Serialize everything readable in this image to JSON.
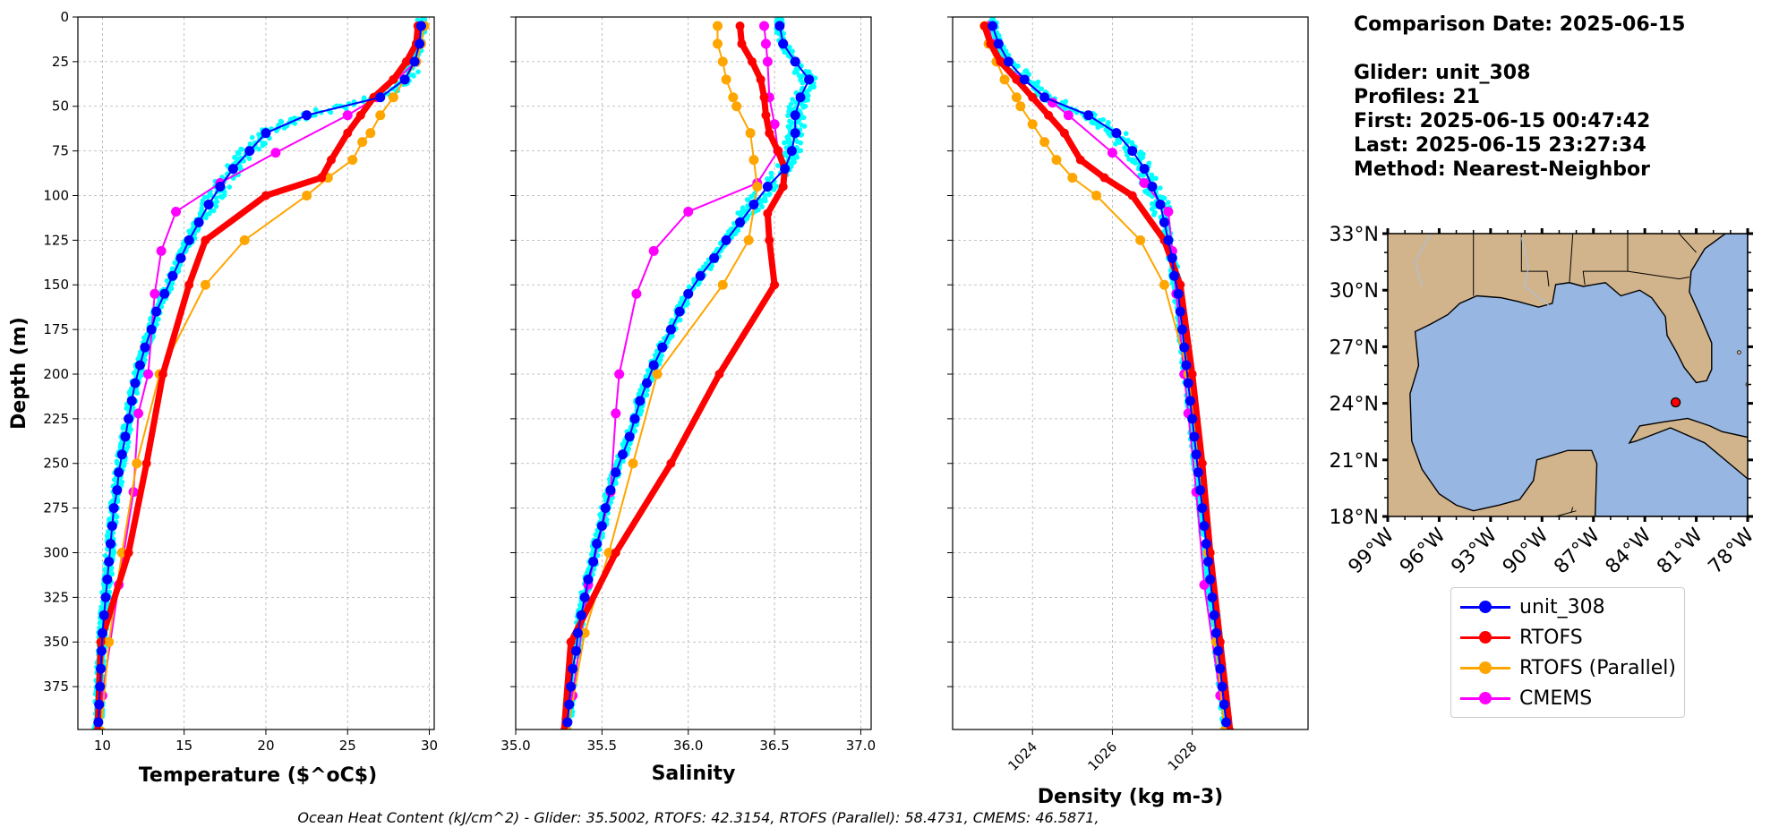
{
  "info": {
    "comparison_date": "Comparison Date: 2025-06-15",
    "glider": "Glider: unit_308",
    "profiles": "Profiles: 21",
    "first": "First: 2025-06-15 00:47:42",
    "last": "Last: 2025-06-15 23:27:34",
    "method": "Method: Nearest-Neighbor"
  },
  "footer": "Ocean Heat Content (kJ/cm^2) - Glider: 35.5002,  RTOFS: 42.3154,  RTOFS (Parallel): 58.4731,  CMEMS: 46.5871,",
  "colors": {
    "glider": "#0000ff",
    "glider_points": "#00ffff",
    "rtofs": "#ff0000",
    "rtofs_parallel": "#ffa500",
    "cmems": "#ff00ff",
    "land": "#d2b48c",
    "ocean": "#97b6e1",
    "grid": "#b0b0b0"
  },
  "legend": [
    {
      "label": "unit_308",
      "color": "#0000ff"
    },
    {
      "label": "RTOFS",
      "color": "#ff0000"
    },
    {
      "label": "RTOFS (Parallel)",
      "color": "#ffa500"
    },
    {
      "label": "CMEMS",
      "color": "#ff00ff"
    }
  ],
  "map": {
    "lat_ticks": [
      "33°N",
      "30°N",
      "27°N",
      "24°N",
      "21°N",
      "18°N"
    ],
    "lon_ticks": [
      "99°W",
      "96°W",
      "93°W",
      "90°W",
      "87°W",
      "84°W",
      "81°W",
      "78°W"
    ],
    "extent": {
      "lon": [
        -99,
        -78
      ],
      "lat": [
        18,
        33
      ]
    },
    "glider_location": {
      "lon": -82.2,
      "lat": 24.05
    }
  },
  "chart_data": [
    {
      "type": "line",
      "xlabel": "Temperature ($^oC$)",
      "ylabel": "Depth (m)",
      "xlim": [
        8.5,
        30.3
      ],
      "ylim": [
        399,
        0
      ],
      "xticks": [
        10,
        15,
        20,
        25,
        30
      ],
      "yticks": [
        0,
        25,
        50,
        75,
        100,
        125,
        150,
        175,
        200,
        225,
        250,
        275,
        300,
        325,
        350,
        375
      ],
      "grid": true,
      "series": [
        {
          "name": "unit_308",
          "marker": "o",
          "width": 2,
          "depth": [
            5,
            15,
            25,
            35,
            45,
            55,
            65,
            75,
            85,
            95,
            105,
            115,
            125,
            135,
            145,
            155,
            165,
            175,
            185,
            195,
            205,
            215,
            225,
            235,
            245,
            255,
            265,
            275,
            285,
            295,
            305,
            315,
            325,
            335,
            345,
            355,
            365,
            375,
            385,
            395
          ],
          "values": [
            29.5,
            29.4,
            29.1,
            28.5,
            27.0,
            22.5,
            20.0,
            19.0,
            18.0,
            17.2,
            16.5,
            15.9,
            15.3,
            14.8,
            14.3,
            13.8,
            13.3,
            13.0,
            12.6,
            12.3,
            12.0,
            11.8,
            11.6,
            11.4,
            11.2,
            11.0,
            10.9,
            10.7,
            10.6,
            10.5,
            10.4,
            10.3,
            10.2,
            10.1,
            10.0,
            9.95,
            9.9,
            9.85,
            9.8,
            9.75
          ]
        },
        {
          "name": "RTOFS",
          "marker": "o",
          "width": 7,
          "depth": [
            5,
            15,
            25,
            35,
            45,
            55,
            65,
            80,
            90,
            100,
            125,
            150,
            200,
            250,
            300,
            350,
            400
          ],
          "values": [
            29.3,
            29.2,
            28.6,
            27.8,
            26.6,
            25.8,
            25.0,
            24.0,
            23.4,
            20.0,
            16.3,
            15.3,
            13.7,
            12.7,
            11.6,
            9.9,
            9.7
          ]
        },
        {
          "name": "RTOFS (Parallel)",
          "marker": "o",
          "width": 2,
          "depth": [
            5,
            15,
            25,
            35,
            45,
            55,
            65,
            70,
            80,
            90,
            100,
            125,
            150,
            200,
            250,
            300,
            350,
            400
          ],
          "values": [
            29.7,
            29.5,
            29.2,
            28.5,
            27.8,
            27.0,
            26.4,
            25.9,
            25.3,
            23.8,
            22.5,
            18.7,
            16.3,
            13.5,
            12.1,
            11.2,
            10.4,
            9.9
          ]
        },
        {
          "name": "CMEMS",
          "marker": "o",
          "width": 2,
          "depth": [
            5,
            15,
            25,
            45,
            55,
            76,
            93,
            109,
            131,
            155,
            200,
            222,
            266,
            318,
            380
          ],
          "values": [
            29.5,
            29.4,
            29.2,
            26.8,
            25.0,
            20.6,
            17.2,
            14.5,
            13.6,
            13.2,
            12.8,
            12.2,
            11.9,
            11.0,
            10.0
          ]
        }
      ]
    },
    {
      "type": "line",
      "xlabel": "Salinity",
      "xlim": [
        35.0,
        37.06
      ],
      "ylim": [
        399,
        0
      ],
      "xticks": [
        35.0,
        35.5,
        36.0,
        36.5,
        37.0
      ],
      "tick_labels": [
        "35.0",
        "35.5",
        "36.0",
        "36.5",
        "37.0"
      ],
      "grid": true,
      "series": [
        {
          "name": "unit_308",
          "marker": "o",
          "width": 2,
          "depth": [
            5,
            15,
            25,
            35,
            45,
            55,
            65,
            75,
            85,
            95,
            105,
            115,
            125,
            135,
            145,
            155,
            165,
            175,
            185,
            195,
            205,
            215,
            225,
            235,
            245,
            255,
            265,
            275,
            285,
            295,
            305,
            315,
            325,
            335,
            345,
            355,
            365,
            375,
            385,
            395
          ],
          "values": [
            36.53,
            36.55,
            36.62,
            36.7,
            36.65,
            36.62,
            36.62,
            36.6,
            36.56,
            36.46,
            36.38,
            36.3,
            36.22,
            36.15,
            36.07,
            36.0,
            35.95,
            35.9,
            35.85,
            35.8,
            35.76,
            35.72,
            35.69,
            35.66,
            35.62,
            35.58,
            35.55,
            35.52,
            35.5,
            35.47,
            35.45,
            35.42,
            35.4,
            35.38,
            35.36,
            35.35,
            35.33,
            35.32,
            35.31,
            35.3
          ]
        },
        {
          "name": "RTOFS",
          "marker": "o",
          "width": 7,
          "depth": [
            5,
            15,
            25,
            35,
            45,
            55,
            65,
            75,
            85,
            95,
            110,
            125,
            150,
            200,
            250,
            300,
            350,
            400
          ],
          "values": [
            36.3,
            36.31,
            36.37,
            36.42,
            36.44,
            36.45,
            36.47,
            36.52,
            36.56,
            36.55,
            36.46,
            36.47,
            36.5,
            36.18,
            35.9,
            35.58,
            35.32,
            35.28
          ]
        },
        {
          "name": "RTOFS (Parallel)",
          "marker": "o",
          "width": 2,
          "depth": [
            5,
            15,
            25,
            35,
            45,
            50,
            65,
            80,
            95,
            125,
            150,
            200,
            250,
            300,
            345,
            400
          ],
          "values": [
            36.17,
            36.17,
            36.2,
            36.22,
            36.26,
            36.28,
            36.36,
            36.38,
            36.4,
            36.35,
            36.2,
            35.82,
            35.68,
            35.54,
            35.4,
            35.3
          ]
        },
        {
          "name": "CMEMS",
          "marker": "o",
          "width": 2,
          "depth": [
            5,
            15,
            25,
            45,
            60,
            75,
            93,
            109,
            131,
            155,
            200,
            222,
            266,
            318,
            380
          ],
          "values": [
            36.44,
            36.45,
            36.46,
            36.47,
            36.5,
            36.52,
            36.4,
            36.0,
            35.8,
            35.7,
            35.6,
            35.58,
            35.55,
            35.42,
            35.33
          ]
        }
      ]
    },
    {
      "type": "line",
      "xlabel": "Density (kg m-3)",
      "xlim": [
        1022.0,
        1030.9
      ],
      "ylim": [
        399,
        0
      ],
      "xticks": [
        1024,
        1026,
        1028
      ],
      "tick_labels": [
        "1024",
        "1026",
        "1028"
      ],
      "grid": true,
      "series": [
        {
          "name": "unit_308",
          "marker": "o",
          "width": 2,
          "depth": [
            5,
            15,
            25,
            35,
            45,
            55,
            65,
            75,
            85,
            95,
            105,
            115,
            125,
            135,
            145,
            155,
            165,
            175,
            185,
            195,
            205,
            215,
            225,
            235,
            245,
            255,
            265,
            275,
            285,
            295,
            305,
            315,
            325,
            335,
            345,
            355,
            365,
            375,
            385,
            395
          ],
          "values": [
            1023.0,
            1023.15,
            1023.4,
            1023.8,
            1024.3,
            1025.4,
            1026.1,
            1026.5,
            1026.8,
            1027.0,
            1027.2,
            1027.3,
            1027.4,
            1027.5,
            1027.55,
            1027.65,
            1027.7,
            1027.75,
            1027.8,
            1027.85,
            1027.9,
            1027.95,
            1028.0,
            1028.05,
            1028.1,
            1028.15,
            1028.2,
            1028.25,
            1028.3,
            1028.35,
            1028.4,
            1028.45,
            1028.5,
            1028.55,
            1028.6,
            1028.65,
            1028.7,
            1028.75,
            1028.8,
            1028.85
          ]
        },
        {
          "name": "RTOFS",
          "marker": "o",
          "width": 7,
          "depth": [
            5,
            15,
            25,
            35,
            45,
            55,
            65,
            80,
            90,
            100,
            125,
            150,
            200,
            250,
            300,
            350,
            400
          ],
          "values": [
            1022.8,
            1022.95,
            1023.2,
            1023.6,
            1024.0,
            1024.4,
            1024.8,
            1025.2,
            1025.8,
            1026.5,
            1027.3,
            1027.7,
            1028.0,
            1028.25,
            1028.45,
            1028.7,
            1028.95
          ]
        },
        {
          "name": "RTOFS (Parallel)",
          "marker": "o",
          "width": 2,
          "depth": [
            5,
            15,
            25,
            35,
            45,
            50,
            60,
            70,
            80,
            90,
            100,
            125,
            150,
            200,
            250,
            300,
            350,
            400
          ],
          "values": [
            1022.8,
            1022.9,
            1023.1,
            1023.3,
            1023.6,
            1023.7,
            1024.0,
            1024.3,
            1024.6,
            1025.0,
            1025.6,
            1026.7,
            1027.3,
            1027.9,
            1028.2,
            1028.4,
            1028.6,
            1028.8
          ]
        },
        {
          "name": "CMEMS",
          "marker": "o",
          "width": 2,
          "depth": [
            5,
            15,
            25,
            48,
            55,
            76,
            93,
            109,
            131,
            155,
            200,
            222,
            266,
            318,
            380
          ],
          "values": [
            1022.9,
            1023.0,
            1023.2,
            1024.5,
            1024.9,
            1026.0,
            1026.8,
            1027.4,
            1027.5,
            1027.6,
            1027.8,
            1027.9,
            1028.1,
            1028.3,
            1028.7
          ]
        }
      ]
    }
  ]
}
